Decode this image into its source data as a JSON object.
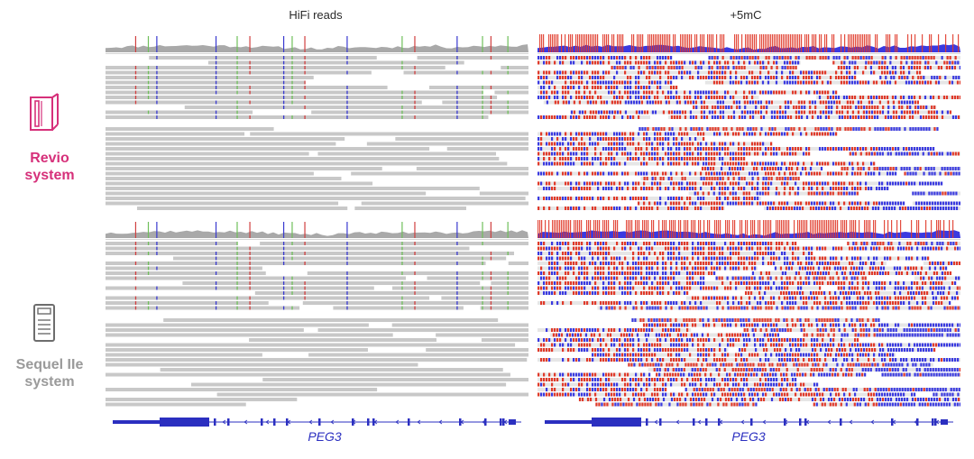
{
  "columns": {
    "left_title": "HiFi reads",
    "right_title": "+5mC"
  },
  "systems": [
    {
      "line1": "Revio",
      "line2": "system",
      "color": "#d6307a",
      "icon": "revio-instrument-icon"
    },
    {
      "line1": "Sequel IIe",
      "line2": "system",
      "color": "#9a9a9a",
      "icon": "sequel-instrument-icon"
    }
  ],
  "gene": {
    "name": "PEG3",
    "color": "#2b2fc0"
  },
  "colors": {
    "read_gray": "#c8c8c8",
    "coverage_gray": "#a9a9a9",
    "methylated": "#e03a2a",
    "unmethylated": "#3a3ae0",
    "mismatch_green": "#6fbf5a",
    "mismatch_red": "#d04040",
    "mismatch_blue": "#3a3ad0"
  }
}
